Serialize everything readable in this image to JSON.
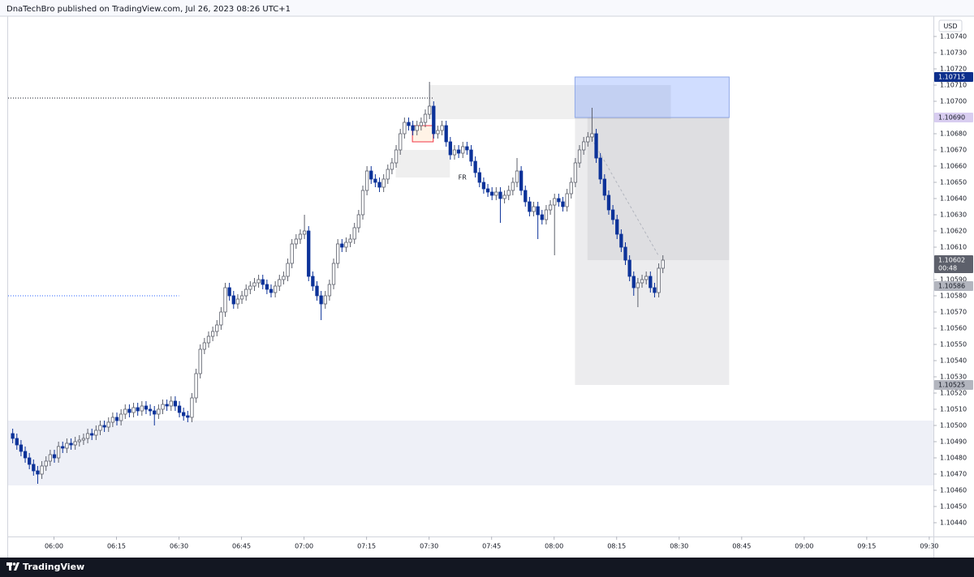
{
  "header": {
    "text": "DnaTechBro published on TradingView.com, Jul 26, 2023 08:26 UTC+1"
  },
  "footer": {
    "brand": "TradingView"
  },
  "chart_data": {
    "type": "candlestick",
    "currency": "USD",
    "up_color": "#ffffff",
    "down_color": "#0c3299",
    "up_border": "#5d606b",
    "wick_color": "#5d606b",
    "grid": false,
    "xlim": [
      "05:49",
      "09:31"
    ],
    "xticks": [
      "06:00",
      "06:15",
      "06:30",
      "06:45",
      "07:00",
      "07:15",
      "07:30",
      "07:45",
      "08:00",
      "08:15",
      "08:30",
      "08:45",
      "09:00",
      "09:15",
      "09:30"
    ],
    "ylim": [
      1.104315,
      1.107525
    ],
    "yticks": [
      {
        "value": 1.1074,
        "label": "1.10740"
      },
      {
        "value": 1.1073,
        "label": "1.10730"
      },
      {
        "value": 1.1072,
        "label": "1.10720"
      },
      {
        "value": 1.1071,
        "label": "1.10710"
      },
      {
        "value": 1.107,
        "label": "1.10700"
      },
      {
        "value": 1.1068,
        "label": "1.10680"
      },
      {
        "value": 1.1067,
        "label": "1.10670"
      },
      {
        "value": 1.1066,
        "label": "1.10660"
      },
      {
        "value": 1.1065,
        "label": "1.10650"
      },
      {
        "value": 1.1064,
        "label": "1.10640"
      },
      {
        "value": 1.1063,
        "label": "1.10630"
      },
      {
        "value": 1.1062,
        "label": "1.10620"
      },
      {
        "value": 1.1061,
        "label": "1.10610"
      },
      {
        "value": 1.1059,
        "label": "1.10590"
      },
      {
        "value": 1.1058,
        "label": "1.10580"
      },
      {
        "value": 1.1057,
        "label": "1.10570"
      },
      {
        "value": 1.1056,
        "label": "1.10560"
      },
      {
        "value": 1.1055,
        "label": "1.10550"
      },
      {
        "value": 1.1054,
        "label": "1.10540"
      },
      {
        "value": 1.1053,
        "label": "1.10530"
      },
      {
        "value": 1.1052,
        "label": "1.10520"
      },
      {
        "value": 1.1051,
        "label": "1.10510"
      },
      {
        "value": 1.105,
        "label": "1.10500"
      },
      {
        "value": 1.1049,
        "label": "1.10490"
      },
      {
        "value": 1.1048,
        "label": "1.10480"
      },
      {
        "value": 1.1047,
        "label": "1.10470"
      },
      {
        "value": 1.1046,
        "label": "1.10460"
      },
      {
        "value": 1.1045,
        "label": "1.10450"
      },
      {
        "value": 1.1044,
        "label": "1.10440"
      }
    ],
    "x": [
      "05:50",
      "05:51",
      "05:52",
      "05:53",
      "05:54",
      "05:55",
      "05:56",
      "05:57",
      "05:58",
      "05:59",
      "06:00",
      "06:01",
      "06:02",
      "06:03",
      "06:04",
      "06:05",
      "06:06",
      "06:07",
      "06:08",
      "06:09",
      "06:10",
      "06:11",
      "06:12",
      "06:13",
      "06:14",
      "06:15",
      "06:16",
      "06:17",
      "06:18",
      "06:19",
      "06:20",
      "06:21",
      "06:22",
      "06:23",
      "06:24",
      "06:25",
      "06:26",
      "06:27",
      "06:28",
      "06:29",
      "06:30",
      "06:31",
      "06:32",
      "06:33",
      "06:34",
      "06:35",
      "06:36",
      "06:37",
      "06:38",
      "06:39",
      "06:40",
      "06:41",
      "06:42",
      "06:43",
      "06:44",
      "06:45",
      "06:46",
      "06:47",
      "06:48",
      "06:49",
      "06:50",
      "06:51",
      "06:52",
      "06:53",
      "06:54",
      "06:55",
      "06:56",
      "06:57",
      "06:58",
      "06:59",
      "07:00",
      "07:01",
      "07:02",
      "07:03",
      "07:04",
      "07:05",
      "07:06",
      "07:07",
      "07:08",
      "07:09",
      "07:10",
      "07:11",
      "07:12",
      "07:13",
      "07:14",
      "07:15",
      "07:16",
      "07:17",
      "07:18",
      "07:19",
      "07:20",
      "07:21",
      "07:22",
      "07:23",
      "07:24",
      "07:25",
      "07:26",
      "07:27",
      "07:28",
      "07:29",
      "07:30",
      "07:31",
      "07:32",
      "07:33",
      "07:34",
      "07:35",
      "07:36",
      "07:37",
      "07:38",
      "07:39",
      "07:40",
      "07:41",
      "07:42",
      "07:43",
      "07:44",
      "07:45",
      "07:46",
      "07:47",
      "07:48",
      "07:49",
      "07:50",
      "07:51",
      "07:52",
      "07:53",
      "07:54",
      "07:55",
      "07:56",
      "07:57",
      "07:58",
      "07:59",
      "08:00",
      "08:01",
      "08:02",
      "08:03",
      "08:04",
      "08:05",
      "08:06",
      "08:07",
      "08:08",
      "08:09",
      "08:10",
      "08:11",
      "08:12",
      "08:13",
      "08:14",
      "08:15",
      "08:16",
      "08:17",
      "08:18",
      "08:19",
      "08:20",
      "08:21",
      "08:22",
      "08:23",
      "08:24",
      "08:25",
      "08:26"
    ],
    "open": [
      1.10495,
      1.10492,
      1.10488,
      1.10484,
      1.1048,
      1.10476,
      1.10472,
      1.1047,
      1.10475,
      1.10478,
      1.10482,
      1.1048,
      1.10487,
      1.10486,
      1.10489,
      1.10488,
      1.1049,
      1.10491,
      1.10492,
      1.10495,
      1.10494,
      1.10497,
      1.105,
      1.10499,
      1.10502,
      1.10505,
      1.10503,
      1.10507,
      1.1051,
      1.10508,
      1.10511,
      1.10509,
      1.10512,
      1.1051,
      1.10509,
      1.10507,
      1.1051,
      1.10513,
      1.10512,
      1.10515,
      1.10512,
      1.10508,
      1.10506,
      1.10505,
      1.10517,
      1.10532,
      1.10547,
      1.10551,
      1.10555,
      1.10558,
      1.10562,
      1.1057,
      1.10585,
      1.1058,
      1.10575,
      1.10578,
      1.1058,
      1.10584,
      1.10586,
      1.10588,
      1.1059,
      1.10587,
      1.10584,
      1.10582,
      1.10586,
      1.1059,
      1.10592,
      1.106,
      1.10612,
      1.10615,
      1.10618,
      1.1062,
      1.10592,
      1.10586,
      1.1058,
      1.10575,
      1.1058,
      1.10587,
      1.106,
      1.10612,
      1.1061,
      1.10613,
      1.10615,
      1.10622,
      1.1063,
      1.10645,
      1.10657,
      1.10652,
      1.1065,
      1.10647,
      1.10652,
      1.10658,
      1.10662,
      1.1067,
      1.1068,
      1.10687,
      1.10685,
      1.10682,
      1.10685,
      1.10687,
      1.10692,
      1.10697,
      1.1068,
      1.10682,
      1.10685,
      1.10675,
      1.10667,
      1.1067,
      1.10668,
      1.10672,
      1.1067,
      1.10663,
      1.10656,
      1.1065,
      1.10646,
      1.10644,
      1.10642,
      1.10644,
      1.1064,
      1.10642,
      1.10645,
      1.1065,
      1.10657,
      1.10645,
      1.10638,
      1.10632,
      1.10635,
      1.1063,
      1.10627,
      1.10633,
      1.10636,
      1.1064,
      1.10638,
      1.10635,
      1.10643,
      1.1065,
      1.10662,
      1.1067,
      1.10675,
      1.10678,
      1.1068,
      1.10665,
      1.10652,
      1.10642,
      1.10633,
      1.10627,
      1.10618,
      1.1061,
      1.10602,
      1.10592,
      1.10585,
      1.10588,
      1.1059,
      1.10592,
      1.10585,
      1.10582,
      1.10597
    ],
    "high": [
      1.10498,
      1.10495,
      1.10491,
      1.10487,
      1.10483,
      1.10479,
      1.10475,
      1.10478,
      1.10481,
      1.10485,
      1.10485,
      1.1049,
      1.1049,
      1.10492,
      1.10492,
      1.10493,
      1.10494,
      1.10495,
      1.10498,
      1.10498,
      1.105,
      1.10503,
      1.10503,
      1.10505,
      1.10508,
      1.10508,
      1.1051,
      1.10513,
      1.10513,
      1.10514,
      1.10514,
      1.10515,
      1.10515,
      1.10513,
      1.10512,
      1.10513,
      1.10516,
      1.10516,
      1.10518,
      1.10518,
      1.10515,
      1.10511,
      1.10509,
      1.1052,
      1.10535,
      1.1055,
      1.10554,
      1.10558,
      1.10561,
      1.10565,
      1.10573,
      1.10588,
      1.10588,
      1.10583,
      1.10581,
      1.10583,
      1.10587,
      1.10589,
      1.10591,
      1.10593,
      1.10593,
      1.1059,
      1.10587,
      1.10589,
      1.10593,
      1.10595,
      1.10603,
      1.10615,
      1.10618,
      1.10621,
      1.1063,
      1.10623,
      1.10595,
      1.10589,
      1.10583,
      1.10583,
      1.1059,
      1.10603,
      1.10615,
      1.10615,
      1.10616,
      1.10618,
      1.10625,
      1.10633,
      1.10648,
      1.1066,
      1.1066,
      1.10655,
      1.10653,
      1.10655,
      1.10661,
      1.10665,
      1.10673,
      1.10683,
      1.1069,
      1.1069,
      1.10688,
      1.10688,
      1.1069,
      1.10695,
      1.10712,
      1.107,
      1.10685,
      1.10688,
      1.10688,
      1.10678,
      1.10673,
      1.10673,
      1.10675,
      1.10675,
      1.10673,
      1.10666,
      1.10659,
      1.10653,
      1.10649,
      1.10647,
      1.10647,
      1.10647,
      1.10645,
      1.10648,
      1.10653,
      1.10665,
      1.1066,
      1.10648,
      1.10641,
      1.10638,
      1.10638,
      1.10633,
      1.10636,
      1.10639,
      1.10643,
      1.10643,
      1.10641,
      1.10646,
      1.10653,
      1.10665,
      1.10673,
      1.10678,
      1.10681,
      1.10696,
      1.10683,
      1.10668,
      1.10655,
      1.10645,
      1.10636,
      1.1063,
      1.10621,
      1.10613,
      1.10605,
      1.10595,
      1.10591,
      1.10593,
      1.10595,
      1.10595,
      1.10588,
      1.106,
      1.10605
    ],
    "low": [
      1.10489,
      1.10485,
      1.10481,
      1.10477,
      1.10473,
      1.10469,
      1.10464,
      1.10467,
      1.10472,
      1.10475,
      1.10477,
      1.10477,
      1.10483,
      1.10483,
      1.10485,
      1.10485,
      1.10487,
      1.10488,
      1.10489,
      1.10491,
      1.10491,
      1.10494,
      1.10496,
      1.10496,
      1.10499,
      1.105,
      1.105,
      1.10504,
      1.10505,
      1.10505,
      1.10506,
      1.10506,
      1.10507,
      1.10506,
      1.105,
      1.10504,
      1.10507,
      1.10509,
      1.10509,
      1.10509,
      1.10505,
      1.10503,
      1.10502,
      1.10502,
      1.10514,
      1.10529,
      1.10544,
      1.10548,
      1.10552,
      1.10555,
      1.10559,
      1.10567,
      1.10577,
      1.10572,
      1.10572,
      1.10575,
      1.10577,
      1.10581,
      1.10583,
      1.10585,
      1.10584,
      1.10581,
      1.10579,
      1.10579,
      1.10583,
      1.10587,
      1.10589,
      1.10597,
      1.10609,
      1.10612,
      1.10615,
      1.10589,
      1.10583,
      1.10577,
      1.10565,
      1.10572,
      1.10577,
      1.10584,
      1.10597,
      1.10607,
      1.10607,
      1.1061,
      1.10612,
      1.10619,
      1.10627,
      1.10642,
      1.10649,
      1.10647,
      1.10644,
      1.10644,
      1.10649,
      1.10655,
      1.10659,
      1.10667,
      1.10677,
      1.10682,
      1.10679,
      1.10679,
      1.10682,
      1.10684,
      1.10689,
      1.10677,
      1.10677,
      1.10679,
      1.10672,
      1.10664,
      1.10664,
      1.10665,
      1.10665,
      1.10667,
      1.1066,
      1.10653,
      1.10647,
      1.10643,
      1.10641,
      1.10639,
      1.10639,
      1.10625,
      1.10637,
      1.10639,
      1.10642,
      1.10647,
      1.10642,
      1.10635,
      1.10629,
      1.10629,
      1.10615,
      1.10624,
      1.10624,
      1.1063,
      1.10605,
      1.10635,
      1.10632,
      1.10632,
      1.1064,
      1.10647,
      1.10659,
      1.10667,
      1.10672,
      1.10675,
      1.10662,
      1.10649,
      1.10639,
      1.1063,
      1.10624,
      1.10615,
      1.10607,
      1.10599,
      1.10589,
      1.1058,
      1.10573,
      1.10585,
      1.10587,
      1.10582,
      1.10579,
      1.10579,
      1.10594
    ],
    "close": [
      1.10492,
      1.10488,
      1.10484,
      1.1048,
      1.10476,
      1.10472,
      1.1047,
      1.10475,
      1.10478,
      1.10482,
      1.1048,
      1.10487,
      1.10486,
      1.10489,
      1.10488,
      1.1049,
      1.10491,
      1.10492,
      1.10495,
      1.10494,
      1.10497,
      1.105,
      1.10499,
      1.10502,
      1.10505,
      1.10503,
      1.10507,
      1.1051,
      1.10508,
      1.10511,
      1.10509,
      1.10512,
      1.1051,
      1.10509,
      1.10507,
      1.1051,
      1.10513,
      1.10512,
      1.10515,
      1.10512,
      1.10508,
      1.10506,
      1.10505,
      1.10517,
      1.10532,
      1.10547,
      1.10551,
      1.10555,
      1.10558,
      1.10562,
      1.1057,
      1.10585,
      1.1058,
      1.10575,
      1.10578,
      1.1058,
      1.10584,
      1.10586,
      1.10588,
      1.1059,
      1.10587,
      1.10584,
      1.10582,
      1.10586,
      1.1059,
      1.10592,
      1.106,
      1.10612,
      1.10615,
      1.10618,
      1.1062,
      1.10592,
      1.10586,
      1.1058,
      1.10575,
      1.1058,
      1.10587,
      1.106,
      1.10612,
      1.1061,
      1.10613,
      1.10615,
      1.10622,
      1.1063,
      1.10645,
      1.10657,
      1.10652,
      1.1065,
      1.10647,
      1.10652,
      1.10658,
      1.10662,
      1.1067,
      1.1068,
      1.10687,
      1.10685,
      1.10682,
      1.10685,
      1.10687,
      1.10692,
      1.10697,
      1.1068,
      1.10682,
      1.10685,
      1.10675,
      1.10667,
      1.1067,
      1.10668,
      1.10672,
      1.1067,
      1.10663,
      1.10656,
      1.1065,
      1.10646,
      1.10644,
      1.10642,
      1.10644,
      1.1064,
      1.10642,
      1.10645,
      1.1065,
      1.10657,
      1.10645,
      1.10638,
      1.10632,
      1.10635,
      1.1063,
      1.10627,
      1.10633,
      1.10636,
      1.1064,
      1.10638,
      1.10635,
      1.10643,
      1.1065,
      1.10662,
      1.1067,
      1.10675,
      1.10678,
      1.1068,
      1.10665,
      1.10652,
      1.10642,
      1.10633,
      1.10627,
      1.10618,
      1.1061,
      1.10602,
      1.10592,
      1.10585,
      1.10588,
      1.1059,
      1.10592,
      1.10585,
      1.10582,
      1.10597,
      1.10602
    ],
    "zones": [
      {
        "top": 1.10503,
        "bottom": 1.10463,
        "color": "#eef0f7"
      },
      {
        "from": "07:30",
        "to": "08:28",
        "top": 1.1071,
        "bottom": 1.10689,
        "color": "#efefef"
      },
      {
        "from": "07:22",
        "to": "07:35",
        "top": 1.1067,
        "bottom": 1.10653,
        "color": "#efefef"
      },
      {
        "from": "07:26",
        "to": "07:31",
        "top": 1.10685,
        "bottom": 1.10675,
        "color": "#fff3e6",
        "border": "#f23645"
      },
      {
        "from": "08:05",
        "to": "08:42",
        "top": 1.10715,
        "bottom": 1.1069,
        "color": "rgba(41,98,255,0.22)",
        "border": "#8fa8e8"
      },
      {
        "from": "08:05",
        "to": "08:42",
        "top": 1.1069,
        "bottom": 1.10525,
        "color": "rgba(120,123,134,0.14)"
      },
      {
        "from": "08:08",
        "to": "08:42",
        "top": 1.1069,
        "bottom": 1.10602,
        "color": "rgba(120,123,134,0.12)"
      }
    ],
    "lines": [
      {
        "to": "07:31",
        "start": 1.10702,
        "end": 1.10702,
        "color": "#131722",
        "dash": "1 2"
      },
      {
        "to": "06:30",
        "start": 1.1058,
        "end": 1.1058,
        "color": "#2962ff",
        "dash": "1 2"
      },
      {
        "from": "08:09",
        "to": "08:25",
        "start": 1.10677,
        "end": 1.10605,
        "color": "#b2b5be",
        "dash": "3 3"
      }
    ],
    "annotations": [
      {
        "text": "FR",
        "time": "07:37",
        "price": 1.10653
      }
    ],
    "price_tags": [
      {
        "price": 1.10715,
        "bg": "#0d2f8c",
        "fg": "#ffffff"
      },
      {
        "price": 1.1069,
        "label": "1.10690",
        "bg": "#d8cdf0",
        "fg": "#131722"
      },
      {
        "price": 1.10602,
        "bg": "#5d606b",
        "fg": "#ffffff",
        "countdown": "00:48"
      },
      {
        "price": 1.10586,
        "bg": "#b2b5be",
        "fg": "#131722"
      },
      {
        "price": 1.10525,
        "bg": "#b2b5be",
        "fg": "#131722"
      }
    ]
  }
}
